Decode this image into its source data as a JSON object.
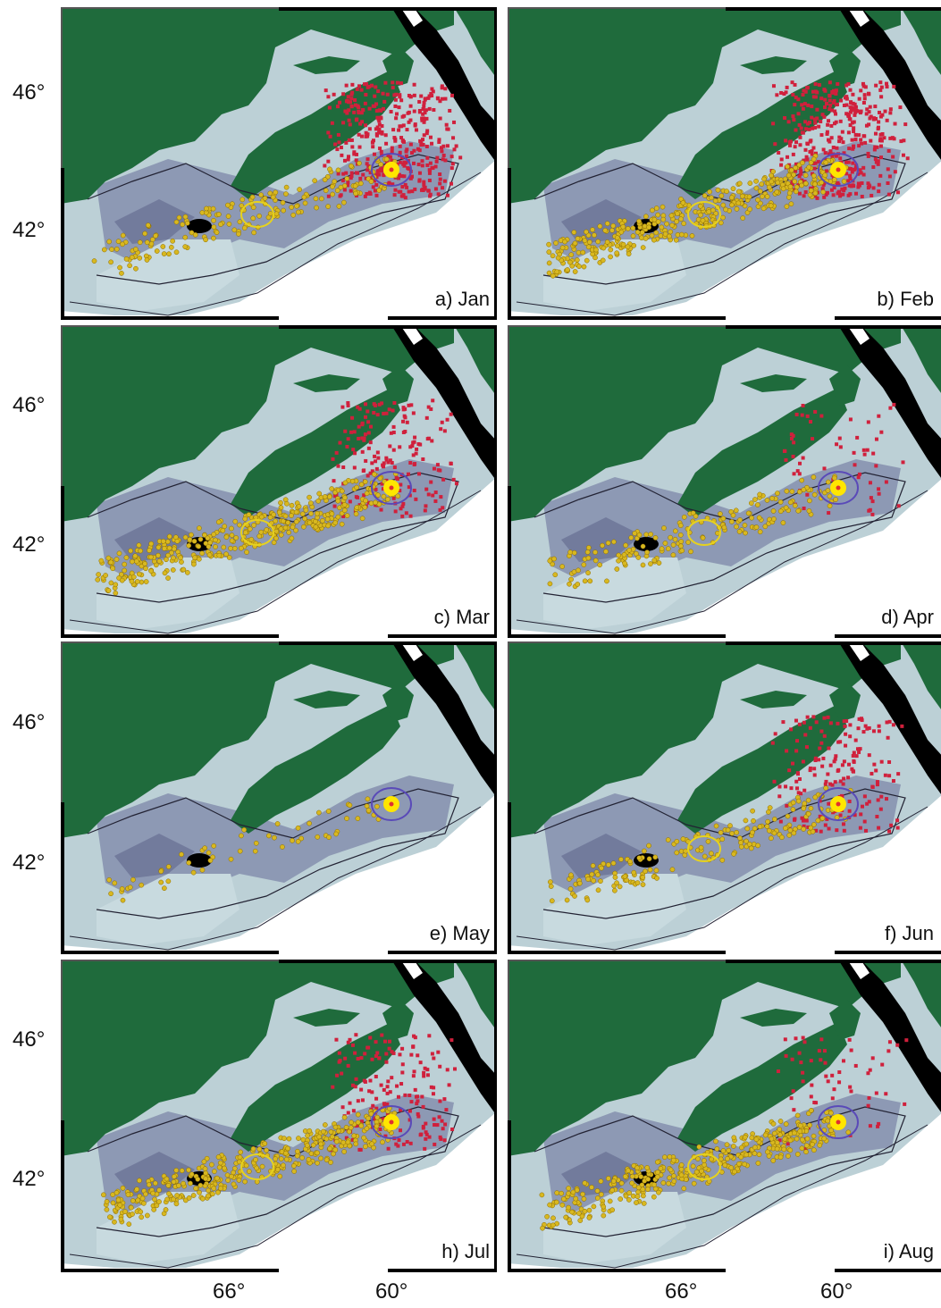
{
  "figure": {
    "lat_labels": [
      "46°",
      "42°"
    ],
    "lon_labels": [
      "66°",
      "60°"
    ]
  },
  "colors": {
    "land": "#1f6b3c",
    "deep": "#000000",
    "shelf": "#bcd0d6",
    "basin": "#7e87a8",
    "red_tracks": "#d0203c",
    "yellow_tracks": "#d8b820",
    "blue_contour": "#5a4ab8"
  },
  "panels": [
    {
      "label": "a) Jan",
      "red": "heavy",
      "yellow": "moderate"
    },
    {
      "label": "b) Feb",
      "red": "heavy",
      "yellow": "heavy"
    },
    {
      "label": "c) Mar",
      "red": "moderate",
      "yellow": "heavy"
    },
    {
      "label": "d) Apr",
      "red": "light",
      "yellow": "moderate"
    },
    {
      "label": "e) May",
      "red": "none",
      "yellow": "light"
    },
    {
      "label": "f) Jun",
      "red": "moderate",
      "yellow": "moderate"
    },
    {
      "label": "h) Jul",
      "red": "moderate",
      "yellow": "heavy"
    },
    {
      "label": "i) Aug",
      "red": "light",
      "yellow": "heavy"
    }
  ]
}
